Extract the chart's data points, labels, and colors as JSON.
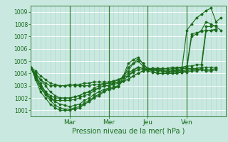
{
  "title": "",
  "xlabel": "Pression niveau de la mer( hPa )",
  "ylabel": "",
  "bg_color": "#c8e8e0",
  "plot_bg_color": "#c8e8e0",
  "line_color": "#1a6b1a",
  "grid_color_v": "#b8d8d0",
  "grid_color_h": "#ffffff",
  "ylim": [
    1000.5,
    1009.5
  ],
  "xlim": [
    0,
    120
  ],
  "yticks": [
    1001,
    1002,
    1003,
    1004,
    1005,
    1006,
    1007,
    1008,
    1009
  ],
  "xtick_positions": [
    24,
    48,
    72,
    96
  ],
  "xtick_labels": [
    "Mar",
    "Mer",
    "Jeu",
    "Ven"
  ],
  "vline_positions": [
    24,
    48,
    72,
    96
  ],
  "n_minor_v": 4,
  "series": [
    [
      0,
      1004.5,
      3,
      1004.2,
      6,
      1003.8,
      9,
      1003.5,
      12,
      1003.2,
      15,
      1003.1,
      18,
      1003.0,
      21,
      1003.0,
      24,
      1003.1,
      27,
      1003.0,
      30,
      1003.0,
      33,
      1003.0,
      36,
      1003.0,
      39,
      1003.1,
      42,
      1003.1,
      45,
      1003.2,
      48,
      1003.2,
      51,
      1003.3,
      54,
      1003.5,
      57,
      1003.7,
      60,
      1004.0,
      63,
      1004.3,
      66,
      1004.5,
      69,
      1004.4,
      72,
      1004.3,
      75,
      1004.3,
      78,
      1004.2,
      81,
      1004.2,
      84,
      1004.1,
      87,
      1004.2,
      90,
      1004.2,
      93,
      1004.3,
      96,
      1007.5,
      99,
      1008.0,
      102,
      1008.5,
      105,
      1008.8,
      108,
      1009.1,
      111,
      1009.3,
      114,
      1008.2,
      117,
      1008.5
    ],
    [
      0,
      1004.5,
      3,
      1004.0,
      6,
      1003.5,
      9,
      1003.0,
      12,
      1002.5,
      15,
      1002.2,
      18,
      1002.0,
      21,
      1002.0,
      24,
      1002.0,
      27,
      1002.1,
      30,
      1002.2,
      33,
      1002.4,
      36,
      1002.5,
      39,
      1002.7,
      42,
      1002.8,
      45,
      1003.0,
      48,
      1003.0,
      51,
      1003.2,
      54,
      1003.3,
      57,
      1003.8,
      60,
      1004.2,
      63,
      1004.8,
      66,
      1005.2,
      69,
      1004.8,
      72,
      1004.4,
      75,
      1004.4,
      78,
      1004.3,
      81,
      1004.2,
      84,
      1004.1,
      87,
      1004.2,
      90,
      1004.2,
      93,
      1004.2,
      96,
      1004.3,
      99,
      1007.0,
      102,
      1007.2,
      105,
      1007.5,
      108,
      1008.2,
      111,
      1008.0,
      114,
      1007.8,
      117,
      1007.5
    ],
    [
      0,
      1004.5,
      3,
      1003.8,
      6,
      1003.2,
      9,
      1002.5,
      12,
      1002.0,
      15,
      1001.7,
      18,
      1001.5,
      21,
      1001.4,
      24,
      1001.3,
      27,
      1001.4,
      30,
      1001.5,
      33,
      1001.8,
      36,
      1002.0,
      39,
      1002.3,
      42,
      1002.5,
      45,
      1002.7,
      48,
      1002.8,
      51,
      1002.9,
      54,
      1003.0,
      57,
      1003.7,
      60,
      1004.5,
      63,
      1004.8,
      66,
      1005.0,
      69,
      1004.6,
      72,
      1004.2,
      75,
      1004.1,
      78,
      1004.0,
      81,
      1004.0,
      84,
      1004.0,
      87,
      1004.1,
      90,
      1004.1,
      93,
      1004.1,
      96,
      1004.2,
      99,
      1004.3,
      102,
      1004.3,
      105,
      1004.4,
      108,
      1007.5,
      111,
      1007.5,
      114,
      1007.5
    ],
    [
      0,
      1004.5,
      3,
      1003.7,
      6,
      1003.0,
      9,
      1002.3,
      12,
      1001.8,
      15,
      1001.4,
      18,
      1001.2,
      21,
      1001.1,
      24,
      1001.1,
      27,
      1001.2,
      30,
      1001.3,
      33,
      1001.6,
      36,
      1001.8,
      39,
      1002.1,
      42,
      1002.3,
      45,
      1002.6,
      48,
      1002.7,
      51,
      1002.8,
      54,
      1002.9,
      57,
      1003.8,
      60,
      1004.8,
      63,
      1005.1,
      66,
      1005.3,
      69,
      1004.8,
      72,
      1004.3,
      75,
      1004.2,
      78,
      1004.0,
      81,
      1004.0,
      84,
      1004.0,
      87,
      1004.0,
      90,
      1004.0,
      93,
      1004.1,
      96,
      1004.1,
      99,
      1004.2,
      102,
      1004.2,
      105,
      1004.3,
      108,
      1004.2,
      111,
      1004.2,
      114,
      1004.3
    ],
    [
      0,
      1004.5,
      3,
      1003.5,
      6,
      1002.5,
      9,
      1002.0,
      12,
      1001.5,
      15,
      1001.2,
      18,
      1001.0,
      21,
      1001.0,
      24,
      1001.0,
      27,
      1001.1,
      30,
      1001.2,
      33,
      1001.5,
      36,
      1001.7,
      39,
      1002.0,
      42,
      1002.2,
      45,
      1002.5,
      48,
      1002.7,
      51,
      1002.8,
      54,
      1003.0,
      57,
      1003.4,
      60,
      1003.8,
      63,
      1004.2,
      66,
      1004.5,
      69,
      1004.4,
      72,
      1004.3,
      75,
      1004.3,
      78,
      1004.2,
      81,
      1004.2,
      84,
      1004.1,
      87,
      1004.2,
      90,
      1004.2,
      93,
      1004.2,
      96,
      1004.3,
      99,
      1004.3,
      102,
      1004.3,
      105,
      1004.3,
      108,
      1004.3,
      111,
      1004.3,
      114,
      1004.4
    ],
    [
      0,
      1004.5,
      3,
      1003.6,
      6,
      1002.8,
      9,
      1002.3,
      12,
      1002.0,
      15,
      1001.8,
      18,
      1001.8,
      21,
      1001.8,
      24,
      1001.8,
      27,
      1001.9,
      30,
      1002.0,
      33,
      1002.2,
      36,
      1002.3,
      39,
      1002.6,
      42,
      1002.8,
      45,
      1003.0,
      48,
      1003.0,
      51,
      1003.1,
      54,
      1003.2,
      57,
      1003.4,
      60,
      1003.5,
      63,
      1003.8,
      66,
      1004.0,
      69,
      1004.2,
      72,
      1004.3,
      75,
      1004.3,
      78,
      1004.3,
      81,
      1004.2,
      84,
      1004.2,
      87,
      1004.3,
      90,
      1004.3,
      93,
      1004.4,
      96,
      1004.4,
      99,
      1004.4,
      102,
      1004.4,
      105,
      1004.5,
      108,
      1004.5,
      111,
      1004.5,
      114,
      1004.5
    ],
    [
      0,
      1004.5,
      3,
      1003.7,
      6,
      1003.0,
      9,
      1002.5,
      12,
      1002.2,
      15,
      1002.0,
      18,
      1002.0,
      21,
      1002.0,
      24,
      1002.0,
      27,
      1002.1,
      30,
      1002.2,
      33,
      1002.4,
      36,
      1002.5,
      39,
      1002.8,
      42,
      1003.0,
      45,
      1003.1,
      48,
      1003.2,
      51,
      1003.2,
      54,
      1003.3,
      57,
      1003.4,
      60,
      1003.5,
      63,
      1003.8,
      66,
      1004.0,
      69,
      1004.2,
      72,
      1004.3,
      75,
      1004.4,
      78,
      1004.4,
      81,
      1004.3,
      84,
      1004.3,
      87,
      1004.4,
      90,
      1004.4,
      93,
      1004.5,
      96,
      1004.5,
      99,
      1007.2,
      102,
      1007.3,
      105,
      1007.4,
      108,
      1007.5,
      111,
      1007.5,
      114,
      1007.6
    ],
    [
      0,
      1004.5,
      3,
      1003.9,
      6,
      1003.5,
      9,
      1003.2,
      12,
      1003.0,
      15,
      1003.0,
      18,
      1003.0,
      21,
      1003.0,
      24,
      1003.0,
      27,
      1003.1,
      30,
      1003.1,
      33,
      1003.2,
      36,
      1003.2,
      39,
      1003.3,
      42,
      1003.3,
      45,
      1003.3,
      48,
      1003.3,
      51,
      1003.4,
      54,
      1003.5,
      57,
      1003.7,
      60,
      1003.8,
      63,
      1004.1,
      66,
      1004.3,
      69,
      1004.3,
      72,
      1004.3,
      75,
      1004.4,
      78,
      1004.4,
      81,
      1004.4,
      84,
      1004.4,
      87,
      1004.5,
      90,
      1004.5,
      93,
      1004.5,
      96,
      1004.6,
      99,
      1004.6,
      102,
      1004.7,
      105,
      1004.7,
      108,
      1007.8,
      111,
      1007.8,
      114,
      1007.9
    ]
  ]
}
